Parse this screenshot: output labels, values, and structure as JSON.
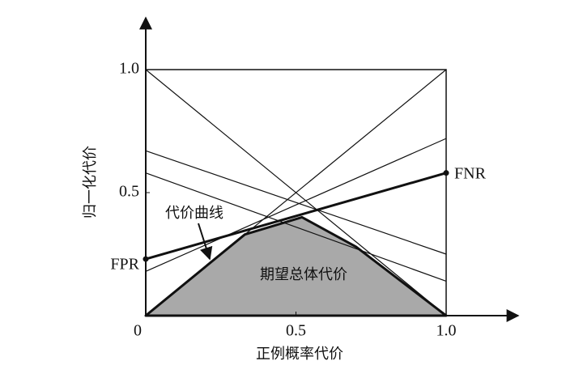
{
  "chart_data": {
    "type": "line",
    "x_label": "正例概率代价",
    "y_label": "归一化代价",
    "xlim": [
      0,
      1
    ],
    "ylim": [
      0,
      1
    ],
    "xticks": [
      {
        "value": 0,
        "label": "0"
      },
      0.5,
      {
        "value": 1,
        "label": "1.0"
      }
    ],
    "yticks": [
      0.5,
      {
        "value": 1,
        "label": "1.0"
      }
    ],
    "series": [
      {
        "x": [
          0,
          1
        ],
        "values": [
          1,
          0
        ],
        "color": "#111111"
      },
      {
        "x": [
          0,
          1
        ],
        "values": [
          0,
          1
        ],
        "color": "#111111"
      },
      {
        "x": [
          0,
          1
        ],
        "values": [
          0.67,
          0.25
        ],
        "color": "#111111"
      },
      {
        "x": [
          0,
          1
        ],
        "values": [
          0.58,
          0.14
        ],
        "color": "#111111"
      },
      {
        "x": [
          0,
          1
        ],
        "values": [
          0.18,
          0.72
        ],
        "color": "#111111"
      },
      {
        "x": [
          0,
          1
        ],
        "values": [
          0.23,
          0.58
        ],
        "color": "#111111",
        "line_width": 3,
        "markers": true,
        "start_label": "FPR",
        "end_label": "FNR"
      }
    ],
    "area": {
      "name": "期望总体代价",
      "x": [
        0,
        0.33,
        0.52,
        0.7,
        1
      ],
      "values": [
        0,
        0.33,
        0.4,
        0.28,
        0
      ],
      "color": "#a9a9a9"
    },
    "annotation": "代价曲线"
  }
}
